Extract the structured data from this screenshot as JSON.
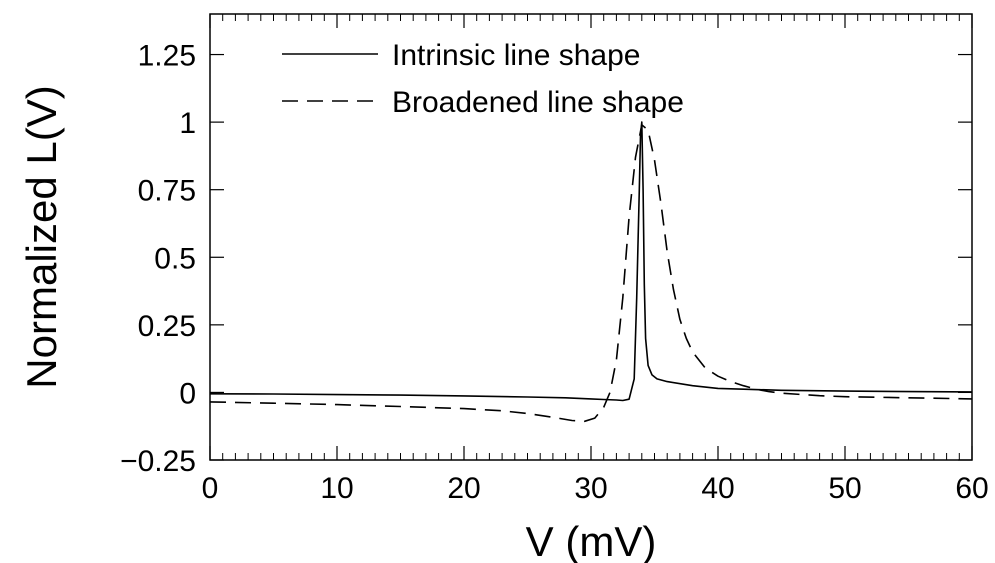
{
  "chart_data": {
    "type": "line",
    "xlabel": "V (mV)",
    "ylabel": "Normalized L(V)",
    "xlim": [
      0,
      60
    ],
    "ylim": [
      -0.25,
      1.4
    ],
    "x_ticks": [
      0,
      10,
      20,
      30,
      40,
      50,
      60
    ],
    "x_tick_labels": [
      "0",
      "10",
      "20",
      "30",
      "40",
      "50",
      "60"
    ],
    "y_ticks": [
      -0.25,
      0,
      0.25,
      0.5,
      0.75,
      1,
      1.25
    ],
    "y_tick_labels": [
      "−0.25",
      "0",
      "0.25",
      "0.5",
      "0.75",
      "1",
      "1.25"
    ],
    "grid": false,
    "legend_position": "top-left",
    "series": [
      {
        "name": "Intrinsic line shape",
        "style": "solid",
        "color": "#000000",
        "x": [
          0,
          5,
          10,
          15,
          20,
          25,
          28,
          30,
          31,
          32,
          32.5,
          33,
          33.4,
          33.6,
          33.8,
          33.9,
          34.0,
          34.1,
          34.2,
          34.3,
          34.5,
          34.8,
          35.2,
          36,
          38,
          40,
          42,
          45,
          50,
          55,
          60
        ],
        "y": [
          -0.005,
          -0.006,
          -0.008,
          -0.01,
          -0.013,
          -0.017,
          -0.02,
          -0.024,
          -0.026,
          -0.028,
          -0.03,
          -0.025,
          0.05,
          0.35,
          0.75,
          0.95,
          1.0,
          0.75,
          0.4,
          0.2,
          0.1,
          0.065,
          0.05,
          0.04,
          0.025,
          0.015,
          0.012,
          0.008,
          0.005,
          0.003,
          0.002
        ]
      },
      {
        "name": "Broadened line shape",
        "style": "dashed",
        "color": "#000000",
        "x": [
          0,
          5,
          10,
          15,
          20,
          23,
          25,
          27,
          28.5,
          29.5,
          30.3,
          31,
          31.5,
          32,
          32.5,
          33,
          33.5,
          34,
          34.5,
          35,
          35.5,
          36,
          36.5,
          37,
          37.5,
          38,
          39,
          40,
          41,
          42,
          43,
          44,
          45,
          48,
          50,
          55,
          60
        ],
        "y": [
          -0.035,
          -0.04,
          -0.045,
          -0.052,
          -0.06,
          -0.068,
          -0.078,
          -0.092,
          -0.104,
          -0.107,
          -0.095,
          -0.055,
          0.0,
          0.12,
          0.35,
          0.65,
          0.87,
          0.99,
          0.97,
          0.86,
          0.7,
          0.52,
          0.38,
          0.27,
          0.2,
          0.15,
          0.09,
          0.06,
          0.04,
          0.025,
          0.012,
          0.003,
          -0.003,
          -0.012,
          -0.016,
          -0.02,
          -0.024
        ]
      }
    ]
  }
}
